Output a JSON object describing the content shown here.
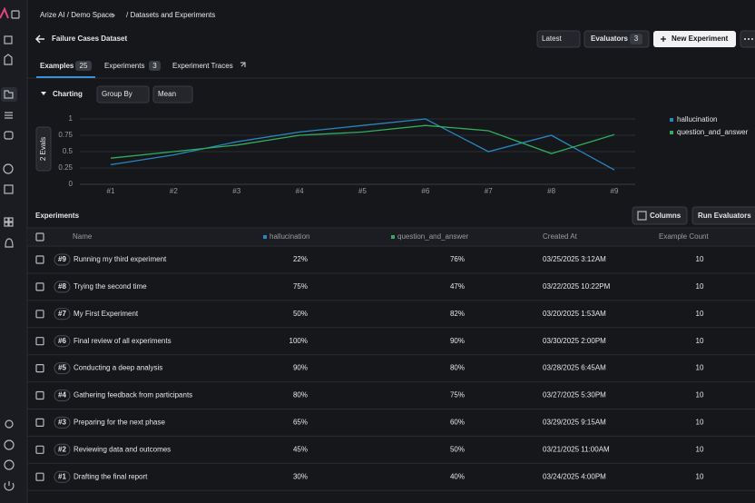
{
  "breadcrumb": {
    "space": "Arize AI / Demo Space",
    "section": "/ Datasets and Experiments"
  },
  "header": {
    "title": "Failure Cases Dataset",
    "buttons": {
      "latest": "Latest",
      "evaluators": "Evaluators",
      "evaluators_count": "3",
      "new_experiment": "New Experiment"
    }
  },
  "tabs": [
    {
      "label": "Examples",
      "count": "25"
    },
    {
      "label": "Experiments",
      "count": "3"
    },
    {
      "label": "Experiment Traces"
    }
  ],
  "charting": {
    "title": "Charting",
    "group_by": "Group By",
    "aggregate": "Mean"
  },
  "chart_data": {
    "type": "line",
    "ylabel": "2 Evals",
    "categories": [
      "#1",
      "#2",
      "#3",
      "#4",
      "#5",
      "#6",
      "#7",
      "#8",
      "#9"
    ],
    "series": [
      {
        "name": "hallucination",
        "color": "#2a86c0",
        "values": [
          0.3,
          0.45,
          0.65,
          0.8,
          0.9,
          1.0,
          0.5,
          0.75,
          0.22
        ]
      },
      {
        "name": "question_and_answer",
        "color": "#2fae5c",
        "values": [
          0.4,
          0.5,
          0.6,
          0.75,
          0.8,
          0.9,
          0.82,
          0.47,
          0.76
        ]
      }
    ],
    "ylim": [
      0,
      1
    ],
    "yticks": [
      0,
      0.25,
      0.5,
      0.75,
      1
    ],
    "grid": true,
    "legend": "right"
  },
  "experiments": {
    "title": "Experiments",
    "buttons": {
      "columns": "Columns",
      "run_evaluators": "Run Evaluators"
    },
    "columns": {
      "name": "Name",
      "hallucination": "hallucination",
      "question_and_answer": "question_and_answer",
      "created_at": "Created At",
      "example_count": "Example Count"
    },
    "rows": [
      {
        "id": "#9",
        "name": "Running my third experiment",
        "hallucination": "22%",
        "question_and_answer": "76%",
        "created_at": "03/25/2025 3:12AM",
        "example_count": "10"
      },
      {
        "id": "#8",
        "name": "Trying the second time",
        "hallucination": "75%",
        "question_and_answer": "47%",
        "created_at": "03/22/2025 10:22PM",
        "example_count": "10"
      },
      {
        "id": "#7",
        "name": "My First Experiment",
        "hallucination": "50%",
        "question_and_answer": "82%",
        "created_at": "03/20/2025 1:53AM",
        "example_count": "10"
      },
      {
        "id": "#6",
        "name": "Final review of all experiments",
        "hallucination": "100%",
        "question_and_answer": "90%",
        "created_at": "03/30/2025 2:00PM",
        "example_count": "10"
      },
      {
        "id": "#5",
        "name": "Conducting a deep analysis",
        "hallucination": "90%",
        "question_and_answer": "80%",
        "created_at": "03/28/2025 6:45AM",
        "example_count": "10"
      },
      {
        "id": "#4",
        "name": "Gathering feedback from participants",
        "hallucination": "80%",
        "question_and_answer": "75%",
        "created_at": "03/27/2025 5:30PM",
        "example_count": "10"
      },
      {
        "id": "#3",
        "name": "Preparing for the next phase",
        "hallucination": "65%",
        "question_and_answer": "60%",
        "created_at": "03/29/2025 9:15AM",
        "example_count": "10"
      },
      {
        "id": "#2",
        "name": "Reviewing data and outcomes",
        "hallucination": "45%",
        "question_and_answer": "50%",
        "created_at": "03/21/2025 11:00AM",
        "example_count": "10"
      },
      {
        "id": "#1",
        "name": "Drafting the final report",
        "hallucination": "30%",
        "question_and_answer": "40%",
        "created_at": "03/24/2025 4:00PM",
        "example_count": "10"
      }
    ]
  }
}
